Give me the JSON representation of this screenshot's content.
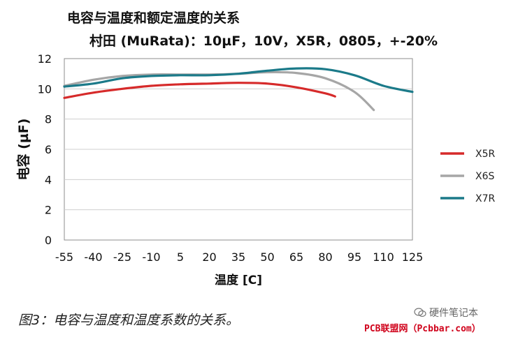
{
  "page": {
    "caption": "图3：电容与温度和温度系数的关系。",
    "watermark": "硬件笔记本",
    "site": "PCB联盟网（Pcbbar.com）"
  },
  "chart_data": {
    "type": "line",
    "title": "电容与温度和额定温度的关系",
    "subtitle": "村田 (MuRata)：10µF，10V，X5R，0805，+-20%",
    "xlabel": "温度 [C]",
    "ylabel": "电容 (µF)",
    "xlim": [
      -55,
      125
    ],
    "ylim": [
      0,
      12
    ],
    "x_ticks": [
      -55,
      -40,
      -25,
      -10,
      5,
      20,
      35,
      50,
      65,
      80,
      95,
      110,
      125
    ],
    "y_ticks": [
      0,
      2,
      4,
      6,
      8,
      10,
      12
    ],
    "grid": "horizontal",
    "legend_position": "right",
    "series": [
      {
        "name": "X5R",
        "color": "#d62a2a",
        "x": [
          -55,
          -40,
          -25,
          -10,
          5,
          20,
          35,
          50,
          65,
          80,
          85
        ],
        "y": [
          9.4,
          9.75,
          10.0,
          10.2,
          10.3,
          10.35,
          10.4,
          10.35,
          10.1,
          9.7,
          9.5
        ]
      },
      {
        "name": "X6S",
        "color": "#a6a6a6",
        "x": [
          -55,
          -40,
          -25,
          -10,
          5,
          20,
          35,
          50,
          65,
          80,
          95,
          105
        ],
        "y": [
          10.2,
          10.6,
          10.85,
          10.95,
          10.95,
          10.95,
          11.0,
          11.1,
          11.05,
          10.7,
          9.8,
          8.6
        ]
      },
      {
        "name": "X7R",
        "color": "#1b7a89",
        "x": [
          -55,
          -40,
          -25,
          -10,
          5,
          20,
          35,
          50,
          65,
          80,
          95,
          110,
          125
        ],
        "y": [
          10.15,
          10.35,
          10.7,
          10.85,
          10.9,
          10.9,
          11.0,
          11.2,
          11.35,
          11.3,
          10.9,
          10.2,
          9.8
        ]
      }
    ]
  }
}
